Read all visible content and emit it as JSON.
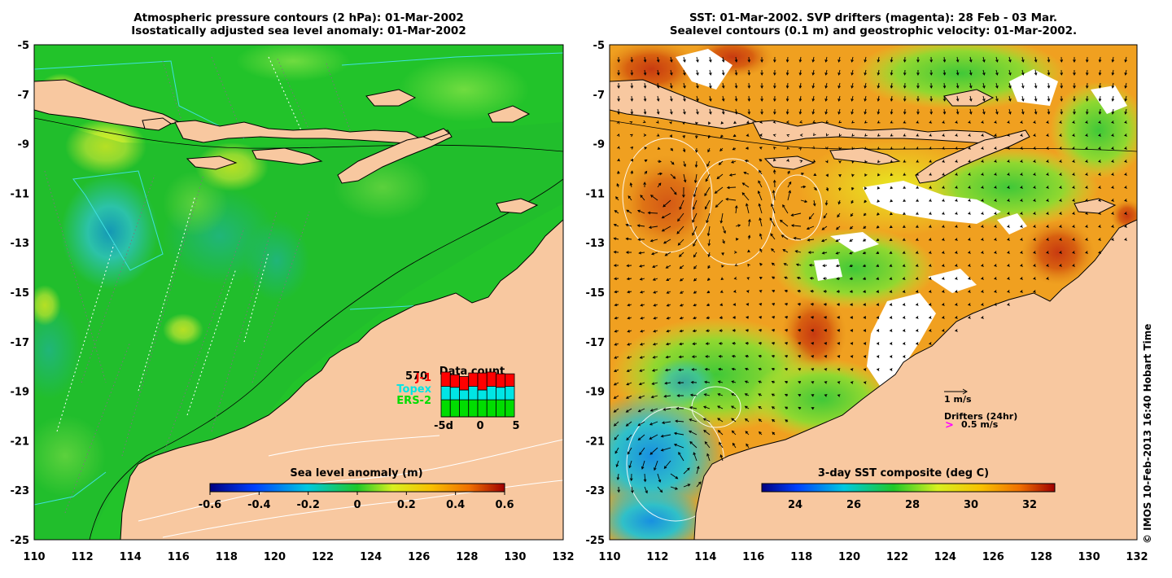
{
  "left_panel": {
    "title_line1": "Atmospheric pressure contours (2 hPa): 01-Mar-2002",
    "title_line2": "Isostatically adjusted sea level anomaly: 01-Mar-2002",
    "colorbar": {
      "title": "Sea level anomaly (m)",
      "ticks": [
        "-0.6",
        "-0.4",
        "-0.2",
        "0",
        "0.2",
        "0.4",
        "0.6"
      ]
    },
    "data_count": {
      "title": "Data count",
      "total": "570",
      "legend": [
        {
          "label": "J-1",
          "color": "#ff0000"
        },
        {
          "label": "Topex",
          "color": "#00e5e5"
        },
        {
          "label": "ERS-2",
          "color": "#00dd00"
        }
      ],
      "x_ticks": [
        "-5d",
        "0",
        "5"
      ],
      "bars": [
        {
          "ers2": 0.38,
          "topex": 0.3,
          "j1": 0.32
        },
        {
          "ers2": 0.38,
          "topex": 0.28,
          "j1": 0.28
        },
        {
          "ers2": 0.38,
          "topex": 0.22,
          "j1": 0.3
        },
        {
          "ers2": 0.38,
          "topex": 0.3,
          "j1": 0.3
        },
        {
          "ers2": 0.38,
          "topex": 0.22,
          "j1": 0.38
        },
        {
          "ers2": 0.38,
          "topex": 0.3,
          "j1": 0.32
        },
        {
          "ers2": 0.38,
          "topex": 0.28,
          "j1": 0.3
        },
        {
          "ers2": 0.38,
          "topex": 0.3,
          "j1": 0.28
        }
      ]
    }
  },
  "right_panel": {
    "title_line1": "SST: 01-Mar-2002. SVP drifters (magenta): 28 Feb - 03 Mar.",
    "title_line2": "Sealevel contours (0.1 m) and geostrophic velocity: 01-Mar-2002.",
    "colorbar": {
      "title": "3-day SST composite (deg C)",
      "ticks": [
        "24",
        "26",
        "28",
        "30",
        "32"
      ]
    },
    "scale_arrow_label": "1 m/s",
    "drifters_label": "Drifters (24hr)",
    "drifter_speed_label": "0.5 m/s"
  },
  "axes": {
    "x_ticks": [
      "110",
      "112",
      "114",
      "116",
      "118",
      "120",
      "122",
      "124",
      "126",
      "128",
      "130",
      "132"
    ],
    "y_ticks": [
      "-5",
      "-7",
      "-9",
      "-11",
      "-13",
      "-15",
      "-17",
      "-19",
      "-21",
      "-23",
      "-25"
    ]
  },
  "credit": "© IMOS 10-Feb-2013 16:40 Hobart Time",
  "colors": {
    "land": "#f8c8a0",
    "anomaly_background": "#22c32a",
    "sst_background": "#f0a020"
  }
}
